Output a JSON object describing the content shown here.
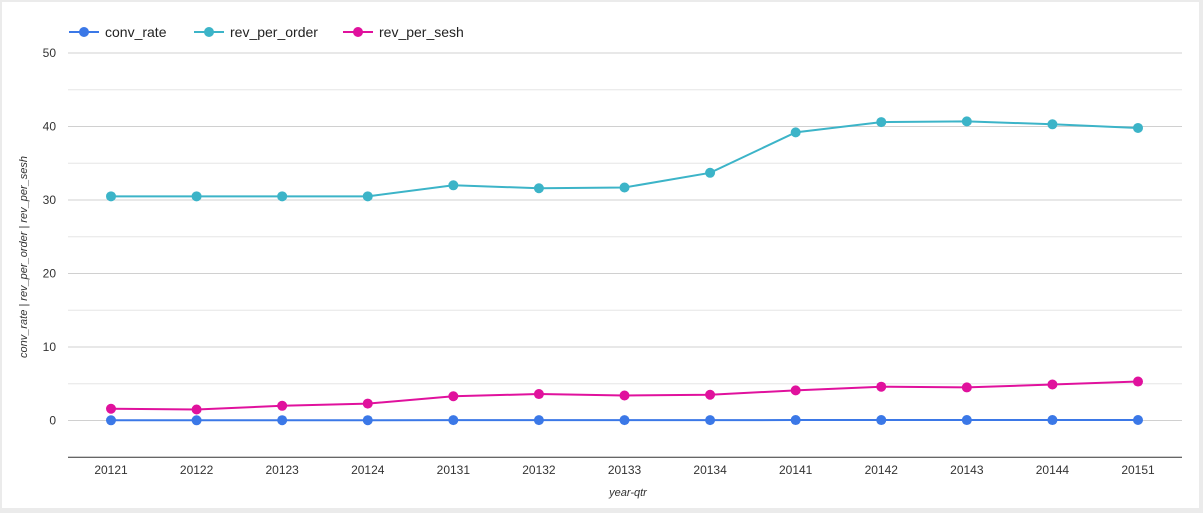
{
  "chart_data": {
    "type": "line",
    "title": "",
    "xlabel": "year-qtr",
    "ylabel": "conv_rate | rev_per_order | rev_per_sesh",
    "categories": [
      "20121",
      "20122",
      "20123",
      "20124",
      "20131",
      "20132",
      "20133",
      "20134",
      "20141",
      "20142",
      "20143",
      "20144",
      "20151"
    ],
    "ylim": [
      -5,
      50
    ],
    "yticks": [
      0,
      10,
      20,
      30,
      40,
      50
    ],
    "grid": true,
    "legend_position": "top-left",
    "series": [
      {
        "name": "conv_rate",
        "color": "#3b78e7",
        "values": [
          0.03,
          0.03,
          0.04,
          0.04,
          0.05,
          0.05,
          0.05,
          0.05,
          0.06,
          0.06,
          0.06,
          0.06,
          0.07
        ]
      },
      {
        "name": "rev_per_order",
        "color": "#3cb4c8",
        "values": [
          30.5,
          30.5,
          30.5,
          30.5,
          32.0,
          31.6,
          31.7,
          33.7,
          39.2,
          40.6,
          40.7,
          40.3,
          39.8
        ]
      },
      {
        "name": "rev_per_sesh",
        "color": "#e0119d",
        "values": [
          1.6,
          1.5,
          2.0,
          2.3,
          3.3,
          3.6,
          3.4,
          3.5,
          4.1,
          4.6,
          4.5,
          4.9,
          5.3
        ]
      }
    ]
  }
}
